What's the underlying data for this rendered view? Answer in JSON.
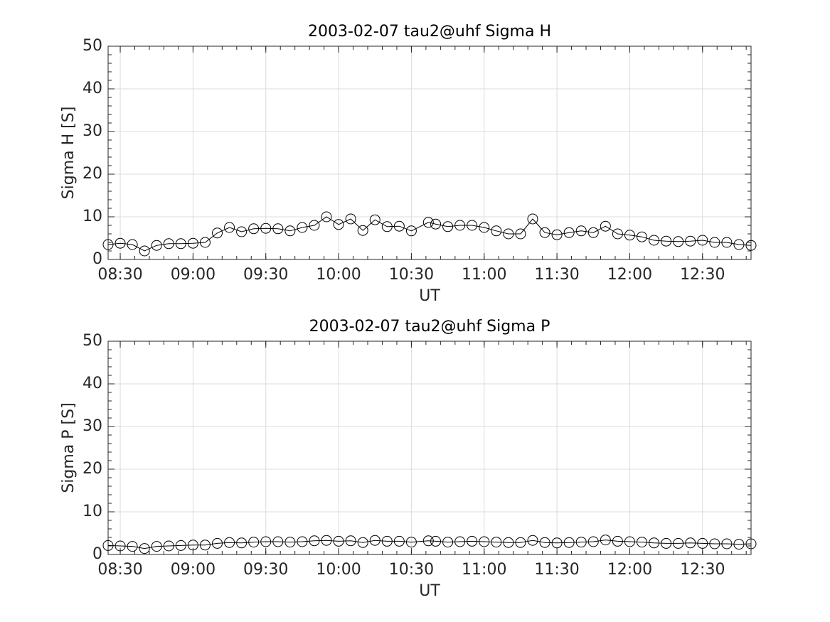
{
  "chart_data": [
    {
      "type": "line",
      "title": "2003-02-07  tau2@uhf Sigma H",
      "xlabel": "UT",
      "ylabel": "Sigma H [S]",
      "color": "#000000",
      "grid": true,
      "x": [
        "08:25",
        "08:30",
        "08:35",
        "08:40",
        "08:45",
        "08:50",
        "08:55",
        "09:00",
        "09:05",
        "09:10",
        "09:15",
        "09:20",
        "09:25",
        "09:30",
        "09:35",
        "09:40",
        "09:45",
        "09:50",
        "09:55",
        "10:00",
        "10:05",
        "10:10",
        "10:15",
        "10:20",
        "10:25",
        "10:30",
        "10:37",
        "10:40",
        "10:45",
        "10:50",
        "10:55",
        "11:00",
        "11:05",
        "11:10",
        "11:15",
        "11:20",
        "11:25",
        "11:30",
        "11:35",
        "11:40",
        "11:45",
        "11:50",
        "11:55",
        "12:00",
        "12:05",
        "12:10",
        "12:15",
        "12:20",
        "12:25",
        "12:30",
        "12:35",
        "12:40",
        "12:45",
        "12:50"
      ],
      "values": [
        3.5,
        3.8,
        3.5,
        2.0,
        3.3,
        3.7,
        3.7,
        3.8,
        4.0,
        6.2,
        7.5,
        6.5,
        7.2,
        7.3,
        7.2,
        6.7,
        7.5,
        8.0,
        10.0,
        8.2,
        9.5,
        6.8,
        9.3,
        7.7,
        7.8,
        6.7,
        8.7,
        8.3,
        7.7,
        8.0,
        8.0,
        7.5,
        6.7,
        6.0,
        6.0,
        9.5,
        6.3,
        5.8,
        6.3,
        6.7,
        6.3,
        7.8,
        6.0,
        5.7,
        5.3,
        4.5,
        4.3,
        4.2,
        4.3,
        4.5,
        4.0,
        4.0,
        3.5,
        3.3
      ],
      "xlim": [
        "08:25",
        "12:50"
      ],
      "xticks": [
        "08:30",
        "09:00",
        "09:30",
        "10:00",
        "10:30",
        "11:00",
        "11:30",
        "12:00",
        "12:30"
      ],
      "ylim": [
        0,
        50
      ],
      "yticks": [
        0,
        10,
        20,
        30,
        40,
        50
      ]
    },
    {
      "type": "line",
      "title": "2003-02-07  tau2@uhf Sigma P",
      "xlabel": "UT",
      "ylabel": "Sigma P [S]",
      "color": "#000000",
      "grid": true,
      "x": [
        "08:25",
        "08:30",
        "08:35",
        "08:40",
        "08:45",
        "08:50",
        "08:55",
        "09:00",
        "09:05",
        "09:10",
        "09:15",
        "09:20",
        "09:25",
        "09:30",
        "09:35",
        "09:40",
        "09:45",
        "09:50",
        "09:55",
        "10:00",
        "10:05",
        "10:10",
        "10:15",
        "10:20",
        "10:25",
        "10:30",
        "10:37",
        "10:40",
        "10:45",
        "10:50",
        "10:55",
        "11:00",
        "11:05",
        "11:10",
        "11:15",
        "11:20",
        "11:25",
        "11:30",
        "11:35",
        "11:40",
        "11:45",
        "11:50",
        "11:55",
        "12:00",
        "12:05",
        "12:10",
        "12:15",
        "12:20",
        "12:25",
        "12:30",
        "12:35",
        "12:40",
        "12:45",
        "12:50"
      ],
      "values": [
        2.1,
        2.0,
        1.9,
        1.4,
        1.9,
        2.0,
        2.1,
        2.2,
        2.2,
        2.6,
        2.8,
        2.7,
        2.9,
        3.0,
        3.0,
        2.9,
        3.0,
        3.2,
        3.3,
        3.1,
        3.2,
        2.8,
        3.3,
        3.1,
        3.1,
        2.9,
        3.2,
        3.1,
        2.9,
        3.0,
        3.1,
        3.0,
        2.9,
        2.8,
        2.8,
        3.3,
        2.8,
        2.7,
        2.8,
        2.9,
        3.0,
        3.4,
        3.1,
        3.0,
        2.9,
        2.7,
        2.6,
        2.6,
        2.7,
        2.6,
        2.5,
        2.5,
        2.4,
        2.5
      ],
      "xlim": [
        "08:25",
        "12:50"
      ],
      "xticks": [
        "08:30",
        "09:00",
        "09:30",
        "10:00",
        "10:30",
        "11:00",
        "11:30",
        "12:00",
        "12:30"
      ],
      "ylim": [
        0,
        50
      ],
      "yticks": [
        0,
        10,
        20,
        30,
        40,
        50
      ]
    }
  ]
}
